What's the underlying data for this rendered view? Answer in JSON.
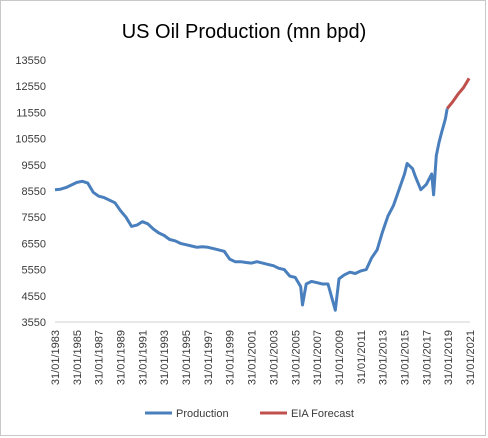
{
  "chart_data": {
    "type": "line",
    "title": "US Oil Production (mn bpd)",
    "xlabel": "",
    "ylabel": "",
    "ylim": [
      3550,
      13550
    ],
    "yticks": [
      3550,
      4550,
      5550,
      6550,
      7550,
      8550,
      9550,
      10550,
      11550,
      12550,
      13550
    ],
    "xlim": [
      "1983-01-31",
      "2021-01-31"
    ],
    "xticks": [
      "31/01/1983",
      "31/01/1985",
      "31/01/1987",
      "31/01/1989",
      "31/01/1991",
      "31/01/1993",
      "31/01/1995",
      "31/01/1997",
      "31/01/1999",
      "31/01/2001",
      "31/01/2003",
      "31/01/2005",
      "31/01/2007",
      "31/01/2009",
      "31/01/2011",
      "31/01/2013",
      "31/01/2015",
      "31/01/2017",
      "31/01/2019",
      "31/01/2021"
    ],
    "grid": false,
    "legend": "bottom",
    "series": [
      {
        "name": "Production",
        "color": "#4a7fbd",
        "points": [
          [
            "1983-01-31",
            8600
          ],
          [
            "1983-07-31",
            8620
          ],
          [
            "1984-01-31",
            8680
          ],
          [
            "1984-07-31",
            8780
          ],
          [
            "1985-01-31",
            8880
          ],
          [
            "1985-07-31",
            8920
          ],
          [
            "1986-01-31",
            8850
          ],
          [
            "1986-07-31",
            8500
          ],
          [
            "1987-01-31",
            8350
          ],
          [
            "1987-07-31",
            8300
          ],
          [
            "1988-01-31",
            8200
          ],
          [
            "1988-07-31",
            8100
          ],
          [
            "1989-01-31",
            7800
          ],
          [
            "1989-07-31",
            7550
          ],
          [
            "1990-01-31",
            7200
          ],
          [
            "1990-07-31",
            7250
          ],
          [
            "1991-01-31",
            7380
          ],
          [
            "1991-07-31",
            7300
          ],
          [
            "1992-01-31",
            7100
          ],
          [
            "1992-07-31",
            6950
          ],
          [
            "1993-01-31",
            6850
          ],
          [
            "1993-07-31",
            6700
          ],
          [
            "1994-01-31",
            6650
          ],
          [
            "1994-07-31",
            6550
          ],
          [
            "1995-01-31",
            6500
          ],
          [
            "1995-07-31",
            6450
          ],
          [
            "1996-01-31",
            6400
          ],
          [
            "1996-07-31",
            6420
          ],
          [
            "1997-01-31",
            6400
          ],
          [
            "1997-07-31",
            6350
          ],
          [
            "1998-01-31",
            6300
          ],
          [
            "1998-07-31",
            6250
          ],
          [
            "1999-01-31",
            5950
          ],
          [
            "1999-07-31",
            5850
          ],
          [
            "2000-01-31",
            5850
          ],
          [
            "2000-07-31",
            5820
          ],
          [
            "2001-01-31",
            5800
          ],
          [
            "2001-07-31",
            5850
          ],
          [
            "2002-01-31",
            5800
          ],
          [
            "2002-07-31",
            5750
          ],
          [
            "2003-01-31",
            5700
          ],
          [
            "2003-07-31",
            5600
          ],
          [
            "2004-01-31",
            5550
          ],
          [
            "2004-07-31",
            5300
          ],
          [
            "2005-01-31",
            5250
          ],
          [
            "2005-07-31",
            4900
          ],
          [
            "2005-09-30",
            4200
          ],
          [
            "2006-01-31",
            5000
          ],
          [
            "2006-07-31",
            5100
          ],
          [
            "2007-01-31",
            5050
          ],
          [
            "2007-07-31",
            5000
          ],
          [
            "2008-01-31",
            5000
          ],
          [
            "2008-09-30",
            4000
          ],
          [
            "2009-01-31",
            5200
          ],
          [
            "2009-07-31",
            5350
          ],
          [
            "2010-01-31",
            5450
          ],
          [
            "2010-07-31",
            5400
          ],
          [
            "2011-01-31",
            5500
          ],
          [
            "2011-07-31",
            5550
          ],
          [
            "2012-01-31",
            6000
          ],
          [
            "2012-07-31",
            6300
          ],
          [
            "2013-01-31",
            7000
          ],
          [
            "2013-07-31",
            7600
          ],
          [
            "2014-01-31",
            8000
          ],
          [
            "2014-07-31",
            8600
          ],
          [
            "2015-01-31",
            9200
          ],
          [
            "2015-04-30",
            9600
          ],
          [
            "2015-10-31",
            9400
          ],
          [
            "2016-01-31",
            9100
          ],
          [
            "2016-07-31",
            8600
          ],
          [
            "2017-01-31",
            8800
          ],
          [
            "2017-07-31",
            9200
          ],
          [
            "2017-09-30",
            8400
          ],
          [
            "2017-12-31",
            9900
          ],
          [
            "2018-03-31",
            10400
          ],
          [
            "2018-06-30",
            10800
          ],
          [
            "2018-10-31",
            11300
          ],
          [
            "2018-12-31",
            11700
          ]
        ]
      },
      {
        "name": "EIA Forecast",
        "color": "#c0504d",
        "points": [
          [
            "2018-12-31",
            11700
          ],
          [
            "2019-06-30",
            11950
          ],
          [
            "2019-12-31",
            12250
          ],
          [
            "2020-06-30",
            12500
          ],
          [
            "2020-12-31",
            12850
          ]
        ]
      }
    ]
  }
}
